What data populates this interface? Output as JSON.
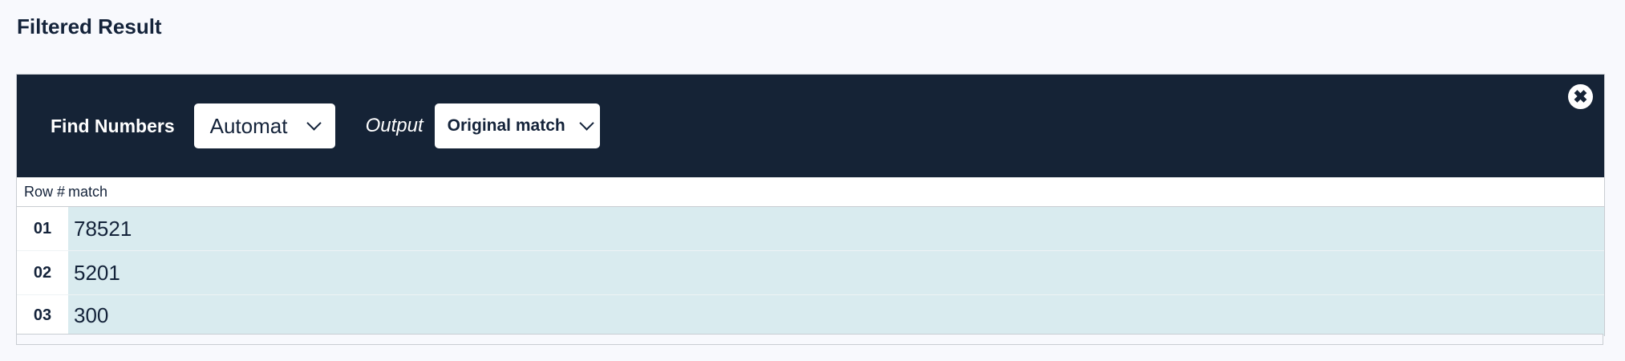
{
  "page": {
    "title": "Filtered Result"
  },
  "toolbar": {
    "find_label": "Find Numbers",
    "mode_value": "Automat",
    "output_label": "Output",
    "output_value": "Original match",
    "close_icon": "close-circle-icon"
  },
  "table": {
    "headers": [
      "Row #",
      "match"
    ],
    "rows": [
      {
        "num": "01",
        "value": "78521"
      },
      {
        "num": "02",
        "value": "5201"
      },
      {
        "num": "03",
        "value": "300"
      }
    ]
  },
  "colors": {
    "header_bg": "#152336",
    "row_bg": "#d9ebef",
    "page_bg": "#f8f9fd"
  }
}
